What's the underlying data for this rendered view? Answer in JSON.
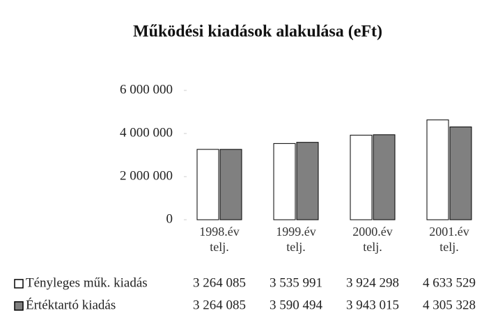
{
  "chart_data": {
    "type": "bar",
    "title": "Működési kiadások alakulása (eFt)",
    "categories": [
      "1998.év telj.",
      "1999.év telj.",
      "2000.év telj.",
      "2001.év telj."
    ],
    "series": [
      {
        "name": "Tényleges műk. kiadás",
        "color": "#ffffff",
        "values": [
          3264085,
          3535991,
          3924298,
          4633529
        ],
        "value_labels": [
          "3 264 085",
          "3 535 991",
          "3 924 298",
          "4 633 529"
        ]
      },
      {
        "name": "Értéktartó kiadás",
        "color": "#808080",
        "values": [
          3264085,
          3590494,
          3943015,
          4305328
        ],
        "value_labels": [
          "3 264 085",
          "3 590 494",
          "3 943 015",
          "4 305 328"
        ]
      }
    ],
    "ylim": [
      0,
      6000000
    ],
    "yticks": [
      0,
      {
        "value": 2000000,
        "label": "2 000 000"
      },
      {
        "value": 4000000,
        "label": "4 000 000"
      },
      {
        "value": 6000000,
        "label": "6 000 000"
      }
    ],
    "grid": false
  }
}
